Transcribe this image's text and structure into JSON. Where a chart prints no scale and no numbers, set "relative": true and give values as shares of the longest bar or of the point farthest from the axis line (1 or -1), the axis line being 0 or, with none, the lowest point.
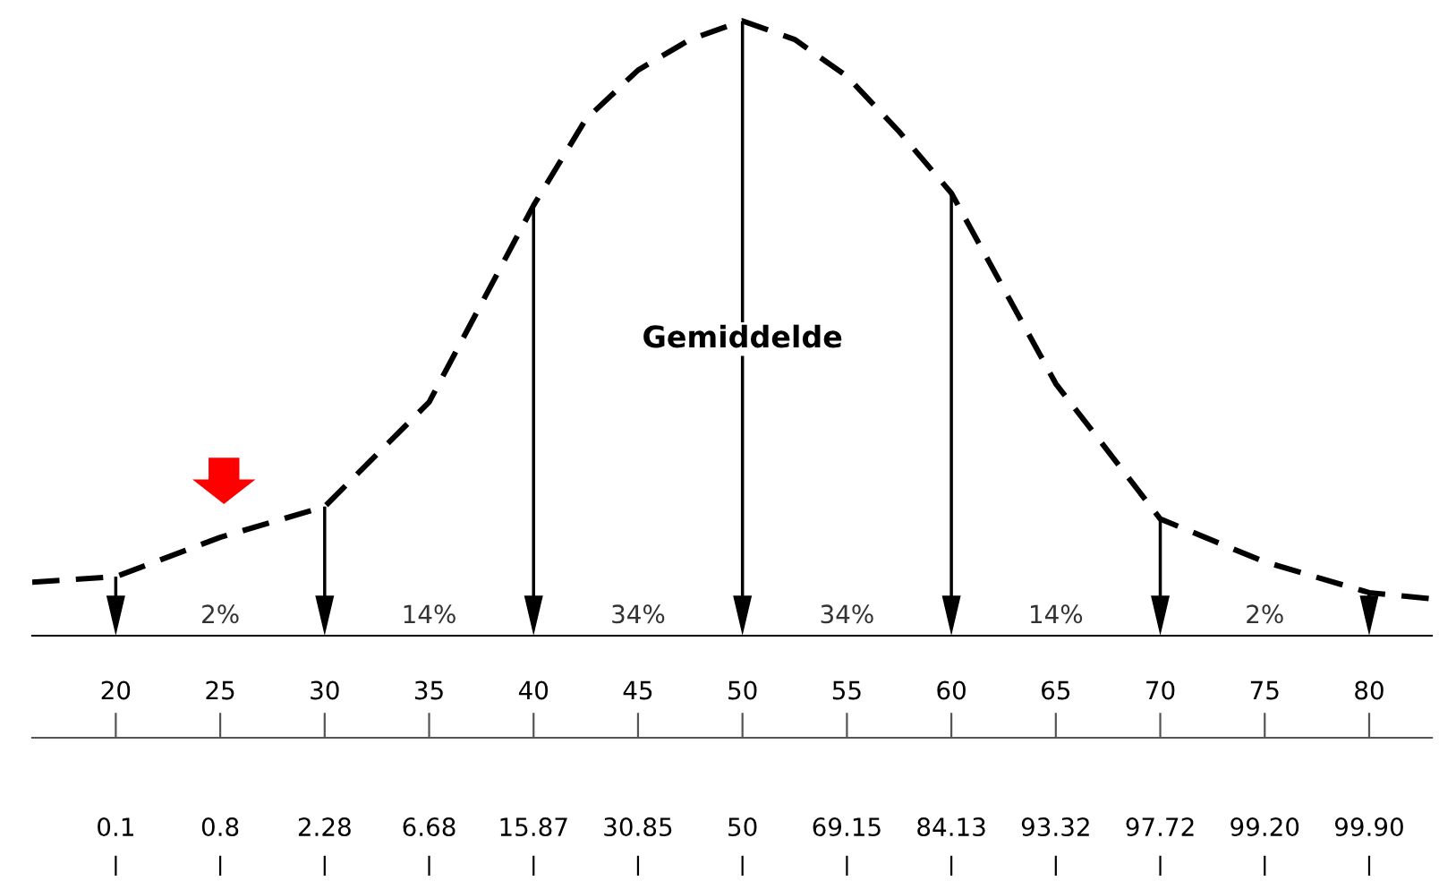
{
  "chart_data": {
    "type": "line",
    "relative": true,
    "x": [
      16,
      20,
      25,
      30,
      35,
      40,
      42.5,
      45,
      47.5,
      50,
      52.5,
      55,
      57.5,
      60,
      65,
      70,
      75,
      80,
      83
    ],
    "series": [
      {
        "color": "#000000",
        "values": [
          0.087,
          0.096,
          0.16,
          0.21,
          0.38,
          0.7,
          0.84,
          0.92,
          0.97,
          1,
          0.97,
          0.91,
          0.82,
          0.72,
          0.41,
          0.19,
          0.12,
          0.07,
          0.06
        ]
      }
    ],
    "line_style": "dashed",
    "marker": "none",
    "xlim": [
      16,
      83
    ],
    "xticks": [
      20,
      25,
      30,
      35,
      40,
      45,
      50,
      55,
      60,
      65,
      70,
      75,
      80
    ],
    "annotations": [
      "2%",
      "14%",
      "34%",
      "34%",
      "14%",
      "2%",
      "0.1",
      "0.8",
      "2.28",
      "6.68",
      "15.87",
      "30.85",
      "50",
      "69.15",
      "84.13",
      "93.32",
      "97.72",
      "99.20",
      "99.90",
      "Gemiddelde"
    ],
    "grid": false
  }
}
